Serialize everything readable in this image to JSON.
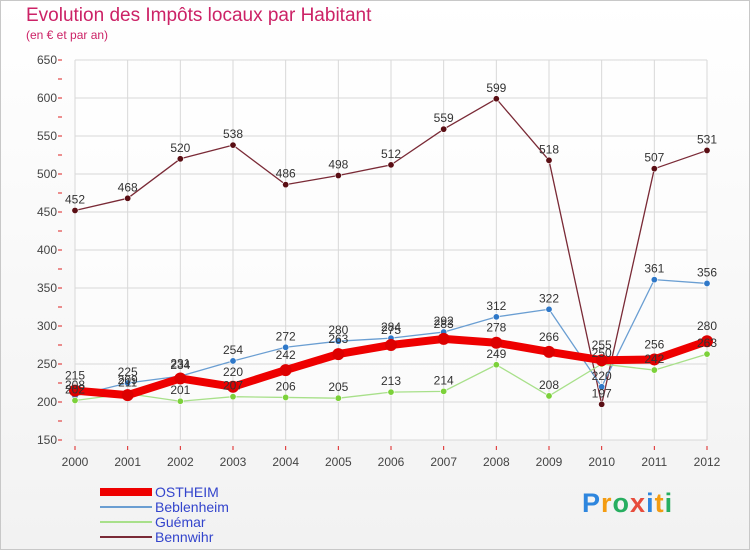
{
  "chart_data": {
    "type": "line",
    "title": "Evolution des Impôts locaux par Habitant",
    "subtitle": "(en € et par an)",
    "xlabel": "",
    "ylabel": "",
    "categories": [
      "2000",
      "2001",
      "2002",
      "2003",
      "2004",
      "2005",
      "2006",
      "2007",
      "2008",
      "2009",
      "2010",
      "2011",
      "2012"
    ],
    "ylim": [
      150,
      650
    ],
    "yticks": [
      150,
      200,
      250,
      300,
      350,
      400,
      450,
      500,
      550,
      600,
      650
    ],
    "grid": true,
    "legend_position": "bottom-left",
    "series": [
      {
        "name": "Bennwihr",
        "color": "#7a2a36",
        "marker_color": "#5a0e14",
        "values": [
          452,
          468,
          520,
          538,
          486,
          498,
          512,
          559,
          599,
          518,
          197,
          507,
          531
        ],
        "labels": [
          "452",
          "468",
          "520",
          "538",
          "486",
          "498",
          "512",
          "559",
          "599",
          "518",
          "197",
          "507",
          "531"
        ]
      },
      {
        "name": "Beblenheim",
        "color": "#6a9ed2",
        "marker_color": "#2f78c8",
        "values": [
          208,
          225,
          234,
          254,
          272,
          280,
          284,
          292,
          312,
          322,
          220,
          361,
          356
        ],
        "labels": [
          "208",
          "225",
          "234",
          "254",
          "272",
          "280",
          "284",
          "292",
          "312",
          "322",
          "220",
          "361",
          "356"
        ]
      },
      {
        "name": "Guémar",
        "color": "#a8e08a",
        "marker_color": "#7cd13a",
        "values": [
          202,
          211,
          201,
          207,
          206,
          205,
          213,
          214,
          249,
          208,
          250,
          242,
          263
        ],
        "labels": [
          "202",
          "211",
          "201",
          "207",
          "206",
          "205",
          "213",
          "214",
          "249",
          "208",
          "250",
          "242",
          "263"
        ]
      },
      {
        "name": "OSTHEIM",
        "color": "#ee0000",
        "marker_color": "#dd0000",
        "values": [
          215,
          209,
          231,
          220,
          242,
          263,
          275,
          283,
          278,
          266,
          255,
          256,
          280
        ],
        "labels": [
          "215",
          "209",
          "231",
          "220",
          "242",
          "263",
          "275",
          "283",
          "278",
          "266",
          "255",
          "256",
          "280"
        ]
      }
    ],
    "legend_order": [
      "OSTHEIM",
      "Beblenheim",
      "Guémar",
      "Bennwihr"
    ]
  },
  "brand": {
    "letters": [
      "P",
      "r",
      "o",
      "x",
      "i",
      "t",
      "i"
    ],
    "colors": [
      "#2e86de",
      "#f39c12",
      "#27ae60",
      "#e74c3c",
      "#2e86de",
      "#f39c12",
      "#27ae60"
    ]
  }
}
